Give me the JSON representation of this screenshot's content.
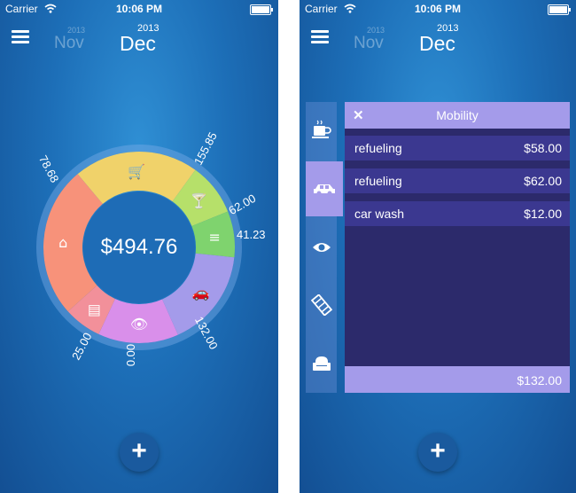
{
  "status": {
    "carrier": "Carrier",
    "time": "10:06 PM"
  },
  "header": {
    "prev_year": "2013",
    "prev_month": "Nov",
    "cur_year": "2013",
    "cur_month": "Dec"
  },
  "overview": {
    "total": "$494.76",
    "segments": [
      {
        "category": "shopping",
        "value": "155.85",
        "color": "#f0d26a"
      },
      {
        "category": "drinks",
        "value": "62.00",
        "color": "#b6e06a"
      },
      {
        "category": "bills",
        "value": "41.23",
        "color": "#7fd36e"
      },
      {
        "category": "mobility",
        "value": "132.00",
        "color": "#a49bea"
      },
      {
        "category": "entertainment",
        "value": "0.00",
        "color": "#d98fea"
      },
      {
        "category": "movies",
        "value": "25.00",
        "color": "#f2909a"
      },
      {
        "category": "living",
        "value": "78.68",
        "color": "#f7927a"
      }
    ]
  },
  "details": {
    "title": "Mobility",
    "entries": [
      {
        "name": "refueling",
        "amount": "$58.00"
      },
      {
        "name": "refueling",
        "amount": "$62.00"
      },
      {
        "name": "car wash",
        "amount": "$12.00"
      }
    ],
    "total": "$132.00",
    "categories": [
      "coffee",
      "car",
      "eye",
      "film",
      "armchair"
    ],
    "selected": "car"
  },
  "add_label": "+"
}
